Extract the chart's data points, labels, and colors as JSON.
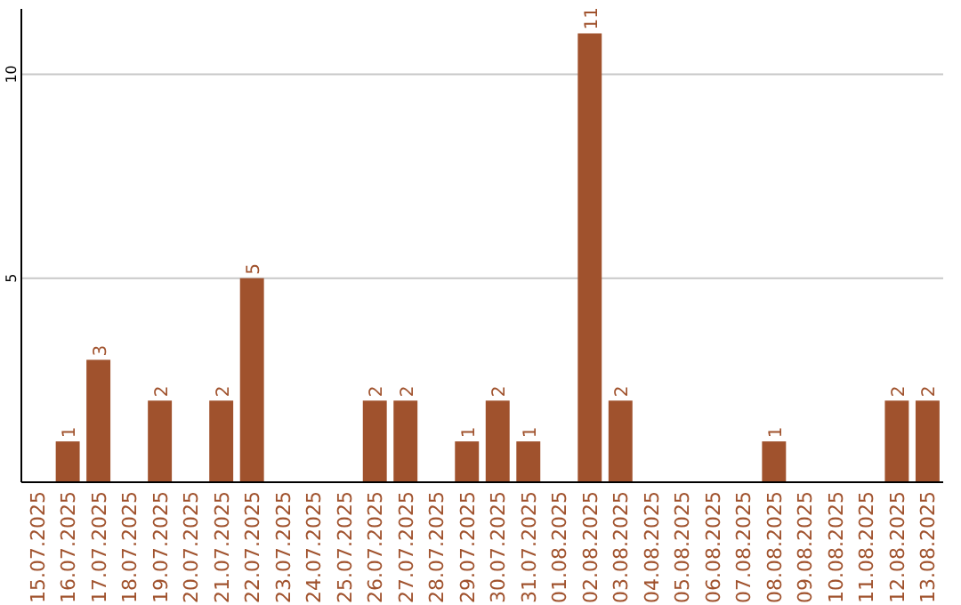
{
  "chart_data": {
    "type": "bar",
    "categories": [
      "15.07.2025",
      "16.07.2025",
      "17.07.2025",
      "18.07.2025",
      "19.07.2025",
      "20.07.2025",
      "21.07.2025",
      "22.07.2025",
      "23.07.2025",
      "24.07.2025",
      "25.07.2025",
      "26.07.2025",
      "27.07.2025",
      "28.07.2025",
      "29.07.2025",
      "30.07.2025",
      "31.07.2025",
      "01.08.2025",
      "02.08.2025",
      "03.08.2025",
      "04.08.2025",
      "05.08.2025",
      "06.08.2025",
      "07.08.2025",
      "08.08.2025",
      "09.08.2025",
      "10.08.2025",
      "11.08.2025",
      "12.08.2025",
      "13.08.2025"
    ],
    "values": [
      0,
      1,
      3,
      0,
      2,
      0,
      2,
      5,
      0,
      0,
      0,
      2,
      2,
      0,
      1,
      2,
      1,
      0,
      11,
      2,
      0,
      0,
      0,
      0,
      1,
      0,
      0,
      0,
      2,
      2
    ],
    "value_labels": [
      null,
      "1",
      "3",
      null,
      "2",
      null,
      "2",
      "5",
      null,
      null,
      null,
      "2",
      "2",
      null,
      "1",
      "2",
      "1",
      null,
      "11",
      "2",
      null,
      null,
      null,
      null,
      "1",
      null,
      null,
      null,
      "2",
      "2"
    ],
    "color": "#a0522d",
    "ylim": [
      0,
      11.6
    ],
    "yticks": [
      5,
      10
    ],
    "grid": "y"
  }
}
